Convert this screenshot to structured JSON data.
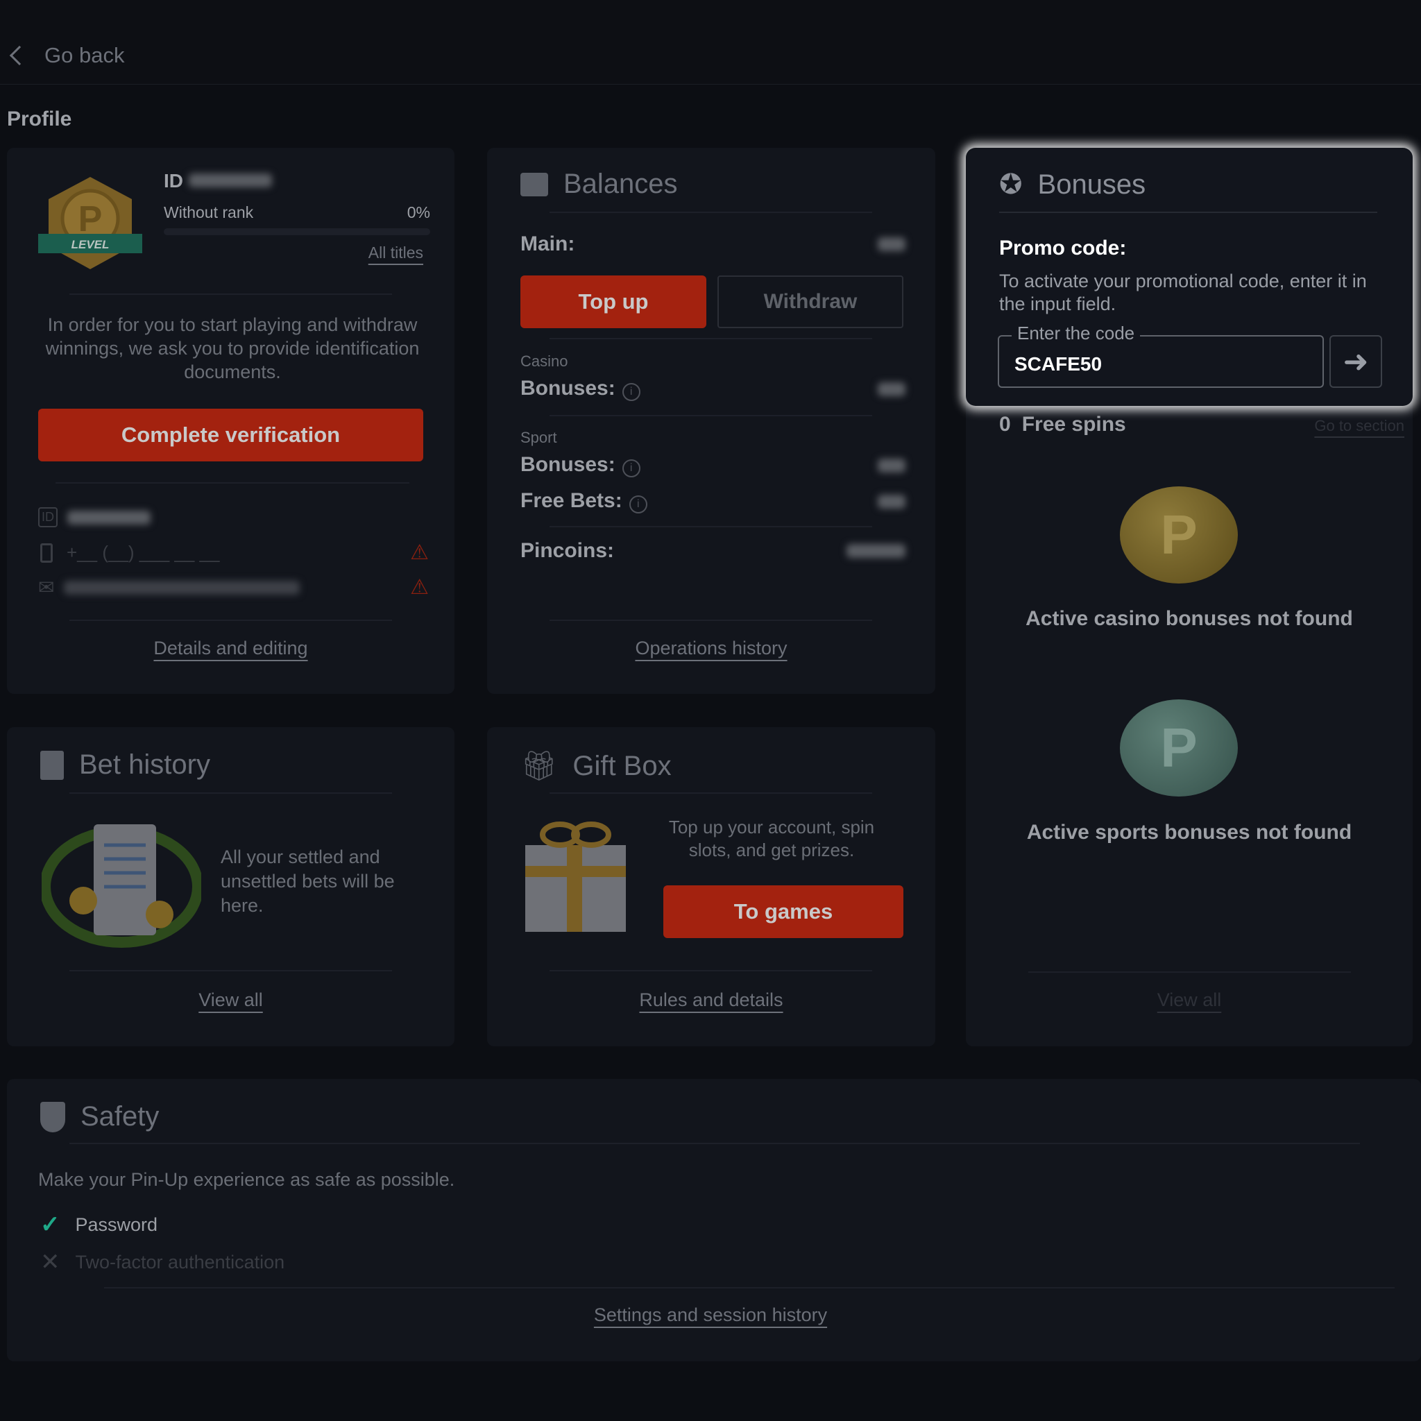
{
  "header": {
    "back_label": "Go back"
  },
  "page_title": "Profile",
  "profile": {
    "id_label": "ID",
    "rank": "Without rank",
    "rank_progress": "0%",
    "rank_progress_value": 0,
    "all_titles": "All titles",
    "badge_label": "LEVEL",
    "verification_text": "In order for you to start playing and withdraw winnings, we ask you to provide identification documents.",
    "verify_button": "Complete verification",
    "phone_placeholder": "+__ (__) ___ __ __",
    "id_icon_text": "ID",
    "details_link": "Details and editing"
  },
  "balances": {
    "title": "Balances",
    "main_label": "Main:",
    "top_up": "Top up",
    "withdraw": "Withdraw",
    "casino_label": "Casino",
    "casino_bonuses": "Bonuses:",
    "sport_label": "Sport",
    "sport_bonuses": "Bonuses:",
    "free_bets": "Free Bets:",
    "pincoins": "Pincoins:",
    "history_link": "Operations history"
  },
  "bonuses": {
    "title": "Bonuses",
    "promo_title": "Promo code:",
    "promo_text": "To activate your promotional code, enter it in the input field.",
    "input_label": "Enter the code",
    "input_value": "SCAFE50",
    "free_spins_count": "0",
    "free_spins_label": "Free spins",
    "go_to_section": "Go to section",
    "casino_coin": "CASINO BONUS",
    "casino_empty": "Active casino bonuses not found",
    "sport_coin": "SPORT BONUS",
    "sport_empty": "Active sports bonuses not found",
    "view_all": "View all"
  },
  "bet_history": {
    "title": "Bet history",
    "text": "All your settled and unsettled bets will be here.",
    "view_all": "View all"
  },
  "gift_box": {
    "title": "Gift Box",
    "text": "Top up your account, spin slots, and get prizes.",
    "button": "To games",
    "rules_link": "Rules and details"
  },
  "safety": {
    "title": "Safety",
    "text": "Make your Pin-Up experience as safe as possible.",
    "items": [
      {
        "label": "Password",
        "status": "done"
      },
      {
        "label": "Two-factor authentication",
        "status": "missing"
      }
    ],
    "settings_link": "Settings and session history"
  },
  "colors": {
    "accent_red": "#d42a0d",
    "success_green": "#1fa888",
    "background": "#0c0e13"
  }
}
